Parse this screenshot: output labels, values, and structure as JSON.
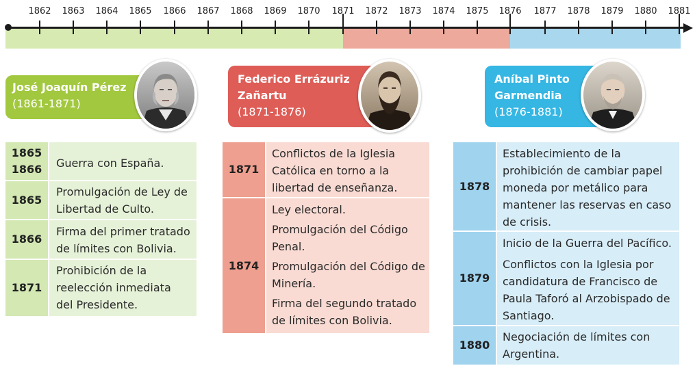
{
  "timeline": {
    "years": [
      "1862",
      "1863",
      "1864",
      "1865",
      "1866",
      "1867",
      "1868",
      "1869",
      "1870",
      "1871",
      "1872",
      "1873",
      "1874",
      "1875",
      "1876",
      "1877",
      "1878",
      "1879",
      "1880",
      "1881"
    ],
    "period_colors": [
      "#d7eab1",
      "#eda99b",
      "#a8d7ee"
    ]
  },
  "presidents": [
    {
      "name": "José Joaquín Pérez",
      "years": "(1861-1871)",
      "color": "#a2c83f",
      "table_year_color": "#d3e8b3",
      "table_text_color": "#e6f2d8",
      "rows": [
        {
          "years": [
            "1865",
            "1866"
          ],
          "events": [
            "Guerra con España."
          ]
        },
        {
          "years": [
            "1865"
          ],
          "events": [
            "Promulgación de Ley de Libertad de Culto."
          ]
        },
        {
          "years": [
            "1866"
          ],
          "events": [
            "Firma del primer tratado de límites con Bolivia."
          ]
        },
        {
          "years": [
            "1871"
          ],
          "events": [
            "Prohibición de la reelección inmediata del Presidente."
          ]
        }
      ]
    },
    {
      "name": "Federico Errázuriz Zañartu",
      "years": "(1871-1876)",
      "color": "#de5d57",
      "table_year_color": "#ee9f8f",
      "table_text_color": "#f9dbd3",
      "rows": [
        {
          "years": [
            "1871"
          ],
          "events": [
            "Conflictos de la Iglesia Católica en torno a la libertad de enseñanza."
          ]
        },
        {
          "years": [
            "1874"
          ],
          "events": [
            "Ley electoral.",
            "Promulgación del Código Penal.",
            "Promulgación del Código de Minería.",
            "Firma del segundo tratado de límites con Bolivia."
          ]
        }
      ]
    },
    {
      "name": "Aníbal Pinto Garmendia",
      "years": "(1876-1881)",
      "color": "#35b6e3",
      "table_year_color": "#9fd3ee",
      "table_text_color": "#d7edf8",
      "rows": [
        {
          "years": [
            "1878"
          ],
          "events": [
            "Establecimiento de la prohibición de cambiar papel moneda por metálico para mantener las reservas en caso de crisis."
          ]
        },
        {
          "years": [
            "1879"
          ],
          "events": [
            "Inicio de la Guerra del Pacífico.",
            "Conflictos con la Iglesia por candidatura de Francisco de Paula Taforó al Arzobispado de Santiago."
          ]
        },
        {
          "years": [
            "1880"
          ],
          "events": [
            "Negociación de límites con Argentina."
          ]
        }
      ]
    }
  ],
  "icons": [
    "portrait-perez",
    "portrait-errazuriz",
    "portrait-pinto"
  ]
}
